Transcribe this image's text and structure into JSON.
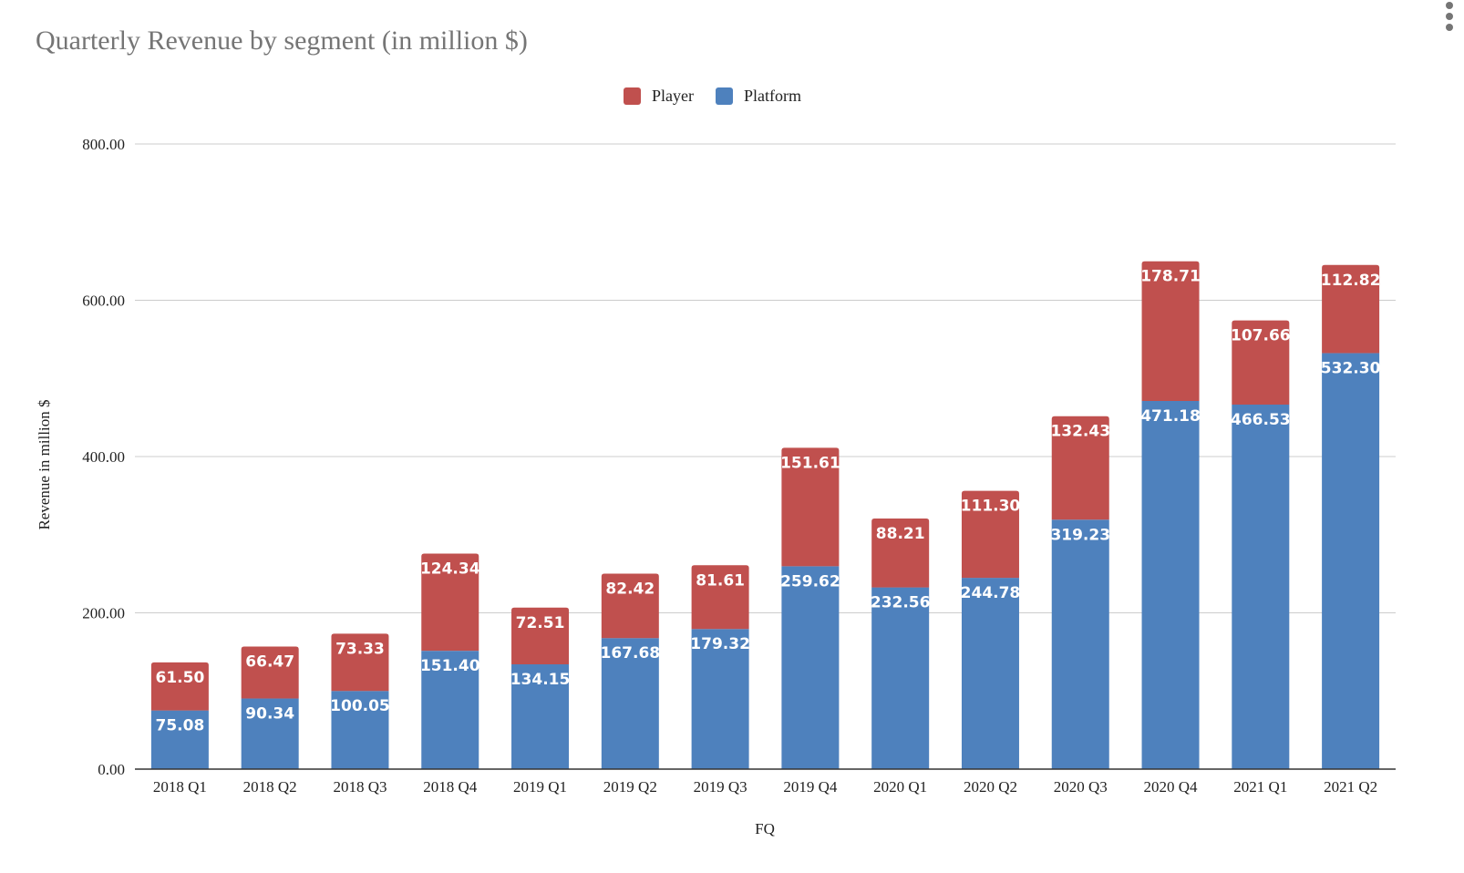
{
  "menu": {
    "icon": "more-vert-icon"
  },
  "chart_data": {
    "type": "bar",
    "stacked": true,
    "title": "Quarterly Revenue by segment (in million $)",
    "xlabel": "FQ",
    "ylabel": "Revenue in million $",
    "ylim": [
      0,
      800
    ],
    "yticks": [
      "0.00",
      "200.00",
      "400.00",
      "600.00",
      "800.00"
    ],
    "ytick_values": [
      0,
      200,
      400,
      600,
      800
    ],
    "grid": true,
    "legend_position": "top-center",
    "categories": [
      "2018 Q1",
      "2018 Q2",
      "2018 Q3",
      "2018 Q4",
      "2019 Q1",
      "2019 Q2",
      "2019 Q3",
      "2019 Q4",
      "2020 Q1",
      "2020 Q2",
      "2020 Q3",
      "2020 Q4",
      "2021 Q1",
      "2021 Q2"
    ],
    "series": [
      {
        "name": "Platform",
        "color": "#4e81bd",
        "values": [
          75.08,
          90.34,
          100.05,
          151.4,
          134.15,
          167.68,
          179.32,
          259.62,
          232.56,
          244.78,
          319.23,
          471.18,
          466.53,
          532.3
        ],
        "labels": [
          "75.08",
          "90.34",
          "100.05",
          "151.40",
          "134.15",
          "167.68",
          "179.32",
          "259.62",
          "232.56",
          "244.78",
          "319.23",
          "471.18",
          "466.53",
          "532.30"
        ]
      },
      {
        "name": "Player",
        "color": "#c0504e",
        "values": [
          61.5,
          66.47,
          73.33,
          124.34,
          72.51,
          82.42,
          81.61,
          151.61,
          88.21,
          111.3,
          132.43,
          178.71,
          107.66,
          112.82
        ],
        "labels": [
          "61.50",
          "66.47",
          "73.33",
          "124.34",
          "72.51",
          "82.42",
          "81.61",
          "151.61",
          "88.21",
          "111.30",
          "132.43",
          "178.71",
          "107.66",
          "112.82"
        ]
      }
    ],
    "legend": [
      {
        "name": "Player",
        "color": "#c0504e"
      },
      {
        "name": "Platform",
        "color": "#4e81bd"
      }
    ]
  }
}
